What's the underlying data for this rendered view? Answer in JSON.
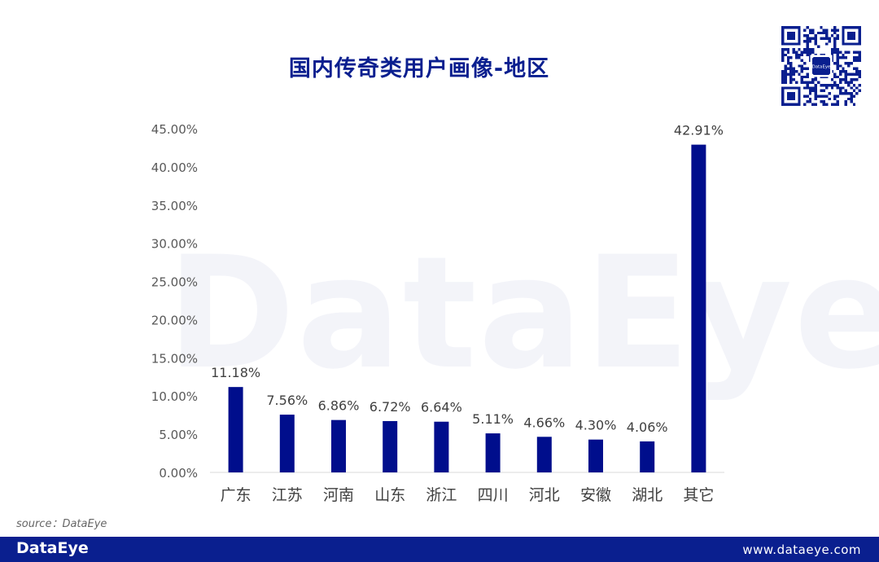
{
  "title": "国内传奇类用户画像-地区",
  "watermark": "DataEye",
  "source": "source：DataEye",
  "footer": {
    "logo": "DataEye",
    "url": "www.dataeye.com"
  },
  "qr_code": {
    "center_label": "DataEye"
  },
  "colors": {
    "bar": "#000e8c",
    "title": "#0a1f8f",
    "footer_bg": "#0a1f8f"
  },
  "chart_data": {
    "type": "bar",
    "title": "国内传奇类用户画像-地区",
    "categories": [
      "广东",
      "江苏",
      "河南",
      "山东",
      "浙江",
      "四川",
      "河北",
      "安徽",
      "湖北",
      "其它"
    ],
    "values": [
      11.18,
      7.56,
      6.86,
      6.72,
      6.64,
      5.11,
      4.66,
      4.3,
      4.06,
      42.91
    ],
    "value_labels": [
      "11.18%",
      "7.56%",
      "6.86%",
      "6.72%",
      "6.64%",
      "5.11%",
      "4.66%",
      "4.30%",
      "4.06%",
      "42.91%"
    ],
    "y_ticks": [
      "0.00%",
      "5.00%",
      "10.00%",
      "15.00%",
      "20.00%",
      "25.00%",
      "30.00%",
      "35.00%",
      "40.00%",
      "45.00%"
    ],
    "ylim": [
      0,
      45
    ],
    "xlabel": "",
    "ylabel": "",
    "grid": false,
    "legend": "none"
  }
}
